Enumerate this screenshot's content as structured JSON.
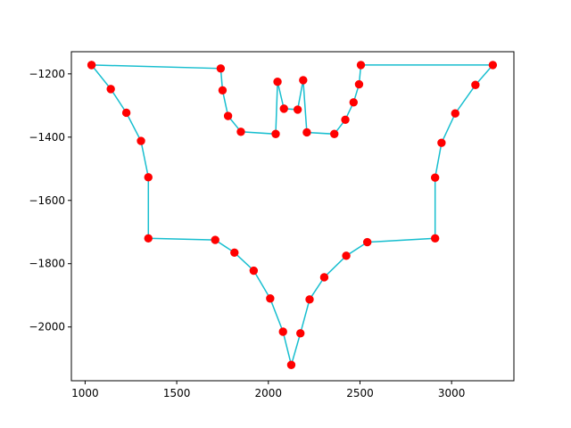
{
  "chart_data": {
    "type": "line",
    "title": "",
    "xlabel": "",
    "ylabel": "",
    "xlim": [
      925,
      3340
    ],
    "ylim": [
      -2170,
      -1130
    ],
    "xticks": [
      1000,
      1500,
      2000,
      2500,
      3000
    ],
    "yticks": [
      -1200,
      -1400,
      -1600,
      -1800,
      -2000
    ],
    "grid": false,
    "line_color": "#17becf",
    "marker_color": "#ff0000",
    "x": [
      1035,
      1740,
      1750,
      1780,
      1850,
      2040,
      2050,
      2085,
      2160,
      2190,
      2210,
      2360,
      2420,
      2465,
      2495,
      2505,
      3225,
      3130,
      3020,
      2945,
      2910,
      2910,
      2540,
      2425,
      2305,
      2225,
      2175,
      2125,
      2080,
      2010,
      1920,
      1815,
      1710,
      1345,
      1345,
      1305,
      1225,
      1140,
      1035
    ],
    "y": [
      -1172,
      -1183,
      -1252,
      -1333,
      -1383,
      -1390,
      -1225,
      -1310,
      -1313,
      -1220,
      -1385,
      -1390,
      -1345,
      -1290,
      -1233,
      -1172,
      -1172,
      -1235,
      -1325,
      -1418,
      -1528,
      -1720,
      -1732,
      -1775,
      -1843,
      -1913,
      -2020,
      -2120,
      -2015,
      -1910,
      -1822,
      -1765,
      -1725,
      -1720,
      -1527,
      -1412,
      -1323,
      -1248,
      -1172
    ]
  }
}
